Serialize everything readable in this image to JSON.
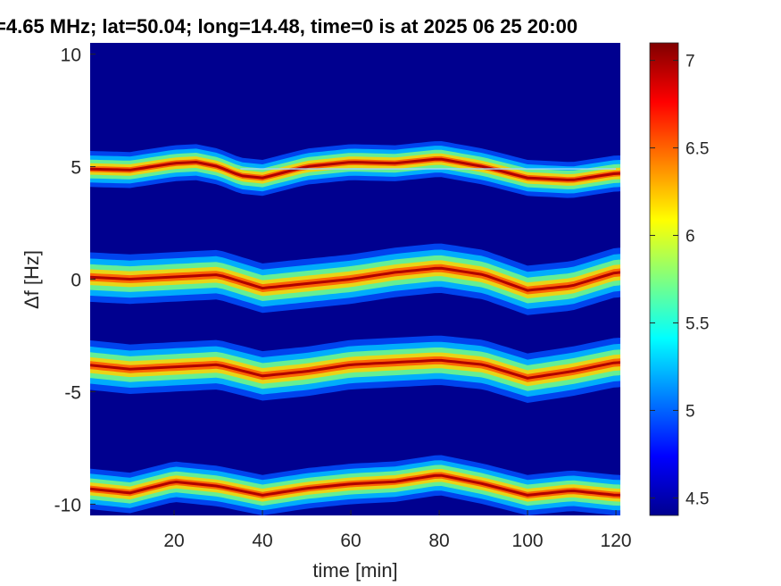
{
  "chart_data": {
    "type": "heatmap",
    "title": "=4.65 MHz;  lat=50.04; long=14.48, time=0 is at 2025 06 25 20:00",
    "xlabel": "time [min]",
    "ylabel": "Δf [Hz]",
    "xlim": [
      1,
      121
    ],
    "ylim": [
      -10.5,
      10.5
    ],
    "x_ticks": [
      20,
      40,
      60,
      80,
      100,
      120
    ],
    "x_tick_labels": [
      "20",
      "40",
      "60",
      "80",
      "100",
      "120"
    ],
    "y_ticks": [
      10,
      5,
      0,
      -5,
      -10
    ],
    "y_tick_labels": [
      "10",
      "5",
      "0",
      "-5",
      "-10"
    ],
    "colorbar": {
      "colormap": "jet",
      "clim": [
        4.4,
        7.1
      ],
      "ticks": [
        7,
        6.5,
        6,
        5.5,
        5,
        4.5
      ],
      "tick_labels": [
        "7",
        "6.5",
        "6",
        "5.5",
        "5",
        "4.5"
      ]
    },
    "background_color": "#00008f",
    "series": [
      {
        "center_trace": {
          "time_min": [
            0,
            10,
            20,
            25,
            30,
            35,
            40,
            50,
            60,
            70,
            80,
            90,
            100,
            110,
            120
          ],
          "df_hz": [
            4.9,
            4.85,
            5.15,
            5.2,
            5.0,
            4.6,
            4.5,
            5.0,
            5.2,
            5.15,
            5.35,
            5.0,
            4.5,
            4.4,
            4.7
          ]
        },
        "spread_hz": 0.8
      },
      {
        "center_trace": {
          "time_min": [
            0,
            10,
            20,
            30,
            40,
            50,
            60,
            70,
            80,
            90,
            100,
            110,
            120
          ],
          "df_hz": [
            0.1,
            0.0,
            0.1,
            0.2,
            -0.4,
            -0.2,
            0.0,
            0.3,
            0.5,
            0.2,
            -0.5,
            -0.3,
            0.3
          ]
        },
        "spread_hz": 1.1
      },
      {
        "center_trace": {
          "time_min": [
            0,
            10,
            20,
            30,
            40,
            50,
            60,
            70,
            80,
            90,
            100,
            110,
            120
          ],
          "df_hz": [
            -3.8,
            -4.0,
            -3.9,
            -3.8,
            -4.3,
            -4.1,
            -3.8,
            -3.7,
            -3.6,
            -3.8,
            -4.4,
            -4.1,
            -3.7
          ]
        },
        "spread_hz": 1.1
      },
      {
        "center_trace": {
          "time_min": [
            0,
            10,
            20,
            30,
            40,
            50,
            60,
            70,
            80,
            90,
            100,
            110,
            120
          ],
          "df_hz": [
            -9.3,
            -9.5,
            -9.0,
            -9.2,
            -9.6,
            -9.3,
            -9.1,
            -9.0,
            -8.7,
            -9.1,
            -9.6,
            -9.4,
            -9.6
          ]
        },
        "spread_hz": 0.9
      }
    ],
    "reference_line": {
      "df_hz": 4.9,
      "time_range_min": [
        35,
        120
      ]
    }
  }
}
